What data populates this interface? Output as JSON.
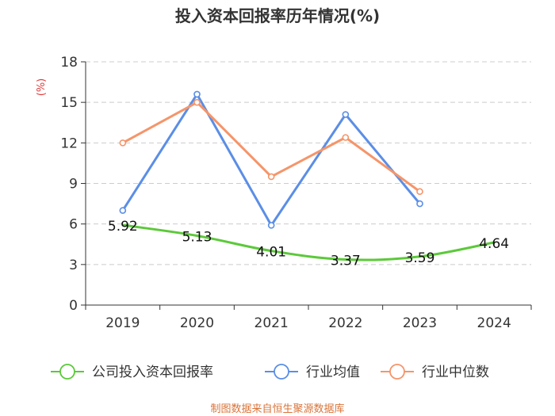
{
  "chart_data": {
    "type": "line",
    "title": "投入资本回报率历年情况(%)",
    "ylabel": "(%)",
    "ylim": [
      0,
      18
    ],
    "yticks": [
      0,
      3,
      6,
      9,
      12,
      15,
      18
    ],
    "categories": [
      "2019",
      "2020",
      "2021",
      "2022",
      "2023",
      "2024"
    ],
    "grid": true,
    "legend_position": "bottom",
    "series": [
      {
        "name": "公司投入资本回报率",
        "color": "#5cc93a",
        "values": [
          5.92,
          5.13,
          4.01,
          3.37,
          3.59,
          4.64
        ],
        "labels": [
          "5.92",
          "5.13",
          "4.01",
          "3.37",
          "3.59",
          "4.64"
        ],
        "smooth": true,
        "markers": false
      },
      {
        "name": "行业均值",
        "color": "#5b8ee6",
        "values": [
          7.0,
          15.6,
          5.9,
          14.1,
          7.5,
          null
        ],
        "markers": true
      },
      {
        "name": "行业中位数",
        "color": "#f5956a",
        "values": [
          12.0,
          15.0,
          9.5,
          12.4,
          8.4,
          null
        ],
        "markers": true
      }
    ],
    "source": "制图数据来自恒生聚源数据库"
  }
}
